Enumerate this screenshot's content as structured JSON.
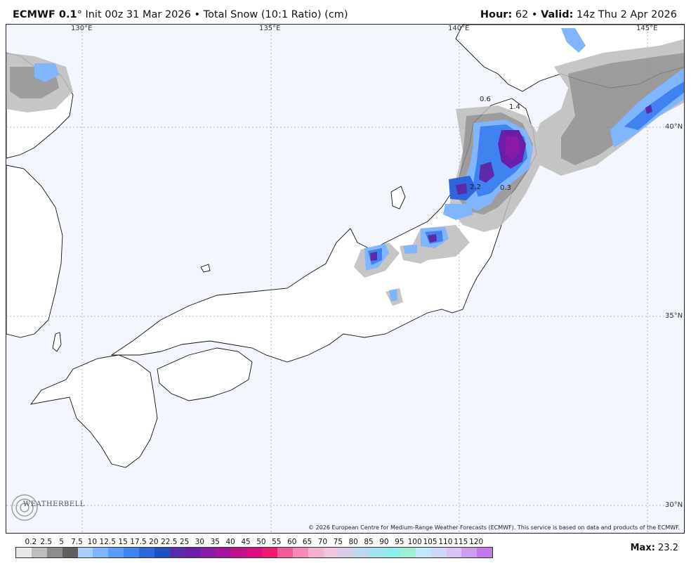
{
  "header": {
    "model": "ECMWF 0.1",
    "degree": "°",
    "init": "Init 00z 31 Mar 2026",
    "separator": "•",
    "product": "Total Snow (10:1 Ratio) (cm)",
    "hour_label": "Hour:",
    "hour_value": "62",
    "valid_label": "Valid:",
    "valid_value": "14z Thu 2 Apr 2026"
  },
  "map": {
    "lon_labels": [
      "130°E",
      "135°E",
      "140°E",
      "145°E"
    ],
    "lat_labels": [
      "40°N",
      "35°N",
      "30°N"
    ],
    "contour_labels": [
      "0.6",
      "1.4",
      "0.3",
      "2.2"
    ],
    "copyright": "© 2026 European Centre for Medium-Range Weather Forecasts (ECMWF). This service is based on data and products of the ECMWF.",
    "logo_text": "WEATHERBELL",
    "logo_icon": "swirl-logo-icon",
    "ocean_color": "#f3f7fd",
    "land_color": "#ffffff"
  },
  "legend": {
    "labels": [
      "0.2",
      "2.5",
      "5",
      "7.5",
      "10",
      "12.5",
      "15",
      "17.5",
      "20",
      "22.5",
      "25",
      "30",
      "35",
      "40",
      "45",
      "50",
      "55",
      "60",
      "65",
      "70",
      "75",
      "80",
      "85",
      "90",
      "95",
      "100",
      "105",
      "110",
      "115",
      "120"
    ],
    "colors": [
      "#e8e8e8",
      "#bdbdbd",
      "#8c8c8c",
      "#5f5f5f",
      "#a6cfff",
      "#7fb6ff",
      "#5a9cff",
      "#3f82f0",
      "#2b66dd",
      "#1e4fc4",
      "#5a2aa8",
      "#6b1fa8",
      "#8a1aa8",
      "#a5159e",
      "#c0118f",
      "#d80f7e",
      "#ee1a72",
      "#f45a95",
      "#f58ab6",
      "#f5b2cf",
      "#eec7dc",
      "#d6cde6",
      "#bcd7ee",
      "#a3e3f0",
      "#92ecec",
      "#a0eed6",
      "#c3e6f7",
      "#cfd6f7",
      "#d8c3f3",
      "#cf9df0",
      "#c27ae8"
    ]
  },
  "max": {
    "label": "Max:",
    "value": "23.2"
  }
}
